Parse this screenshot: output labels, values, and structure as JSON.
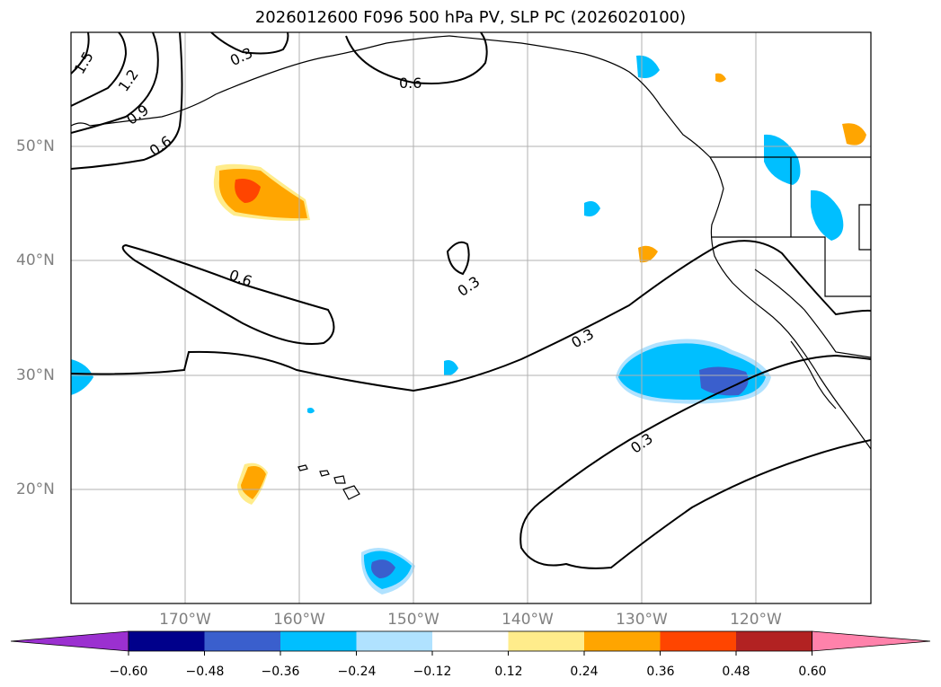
{
  "title": "2026012600 F096 500 hPa PV, SLP PC (2026020100)",
  "lat_labels": [
    "50°N",
    "40°N",
    "30°N",
    "20°N"
  ],
  "lon_labels": [
    "170°W",
    "160°W",
    "150°W",
    "140°W",
    "130°W",
    "120°W"
  ],
  "colorbar": {
    "ticks": [
      "−0.60",
      "−0.48",
      "−0.36",
      "−0.24",
      "−0.12",
      "0.12",
      "0.24",
      "0.36",
      "0.48",
      "0.60"
    ],
    "colors": [
      "#9b30d0",
      "#00008b",
      "#3a5fcd",
      "#00bfff",
      "#b0e2ff",
      "#ffffff",
      "#ffec8b",
      "#ffa500",
      "#ff4500",
      "#b22222",
      "#ff82ab"
    ]
  },
  "contour_labels": [
    "1.5",
    "1.2",
    "0.9",
    "0.6",
    "0.3",
    "0.6",
    "0.6",
    "0.3",
    "0.3",
    "0.3"
  ],
  "colors": {
    "grid": "#b0b0b0",
    "contour": "#000000",
    "axis_label": "#808080"
  }
}
